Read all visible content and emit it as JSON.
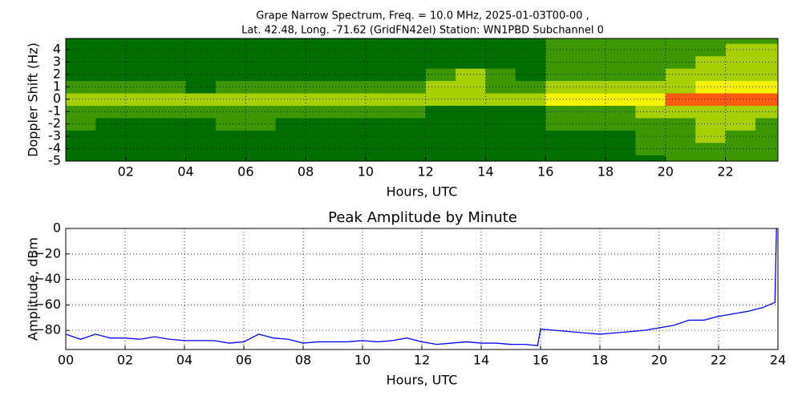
{
  "chart_data": [
    {
      "type": "heatmap",
      "title": "Grape Narrow Spectrum, Freq. = 10.0 MHz, 2025-01-03T00-00 ,",
      "subtitle": "Lat.  42.48, Long. -71.62 (GridFN42el) Station: WN1PBD Subchannel 0",
      "x_label": "Hours, UTC",
      "y_label": "Doppler Shift (Hz)",
      "xlim": [
        0,
        23.75
      ],
      "ylim": [
        -5,
        4.9
      ],
      "xticks": [
        {
          "value": 2,
          "label": "02"
        },
        {
          "value": 4,
          "label": "04"
        },
        {
          "value": 6,
          "label": "06"
        },
        {
          "value": 8,
          "label": "08"
        },
        {
          "value": 10,
          "label": "10"
        },
        {
          "value": 12,
          "label": "12"
        },
        {
          "value": 14,
          "label": "14"
        },
        {
          "value": 16,
          "label": "16"
        },
        {
          "value": 18,
          "label": "18"
        },
        {
          "value": 20,
          "label": "20"
        },
        {
          "value": 22,
          "label": "22"
        }
      ],
      "yticks": [
        -5,
        -4,
        -3,
        -2,
        -1,
        0,
        1,
        2,
        3,
        4
      ],
      "grid": true,
      "x_bins": [
        0,
        1,
        2,
        3,
        4,
        5,
        6,
        7,
        8,
        9,
        10,
        11,
        12,
        13,
        14,
        15,
        16,
        17,
        18,
        19,
        20,
        21,
        22,
        23,
        24
      ],
      "y_bins": [
        -5,
        -4.5,
        -3.5,
        -2.5,
        -1.5,
        -0.5,
        0.5,
        1.5,
        2.5,
        3.5,
        4.5,
        5
      ],
      "colormap": [
        "#006e00",
        "#3d9800",
        "#a6d000",
        "#f4f400",
        "#ff5a10"
      ],
      "z": [
        [
          0,
          0,
          0,
          0,
          0,
          0,
          0,
          0,
          0,
          0,
          0,
          0,
          0,
          0,
          0,
          0,
          0,
          0,
          0,
          0,
          1,
          1,
          1,
          1
        ],
        [
          0,
          0,
          0,
          0,
          0,
          0,
          0,
          0,
          0,
          0,
          0,
          0,
          0,
          0,
          0,
          0,
          0,
          0,
          0,
          1,
          1,
          1,
          1,
          1
        ],
        [
          0,
          0,
          0,
          0,
          0,
          0,
          0,
          0,
          0,
          0,
          0,
          0,
          0,
          0,
          0,
          0,
          0,
          0,
          0,
          1,
          1,
          2,
          1,
          1
        ],
        [
          1,
          0,
          0,
          0,
          0,
          1,
          1,
          0,
          0,
          0,
          0,
          0,
          0,
          0,
          0,
          0,
          1,
          1,
          1,
          1,
          1,
          2,
          2,
          1
        ],
        [
          1,
          1,
          1,
          1,
          1,
          1,
          1,
          1,
          1,
          1,
          1,
          1,
          0,
          0,
          0,
          0,
          1,
          1,
          1,
          2,
          2,
          2,
          2,
          2
        ],
        [
          2,
          2,
          2,
          2,
          2,
          2,
          2,
          2,
          2,
          2,
          2,
          2,
          2,
          2,
          2,
          2,
          3,
          3,
          3,
          3,
          4,
          4,
          4,
          4
        ],
        [
          1,
          1,
          1,
          1,
          0,
          1,
          1,
          1,
          1,
          1,
          1,
          1,
          2,
          2,
          1,
          1,
          2,
          2,
          2,
          2,
          2,
          3,
          3,
          3
        ],
        [
          0,
          0,
          0,
          0,
          0,
          0,
          0,
          0,
          0,
          0,
          0,
          0,
          1,
          2,
          1,
          0,
          1,
          1,
          1,
          1,
          2,
          2,
          2,
          2
        ],
        [
          0,
          0,
          0,
          0,
          0,
          0,
          0,
          0,
          0,
          0,
          0,
          0,
          0,
          0,
          0,
          0,
          1,
          1,
          1,
          1,
          1,
          2,
          2,
          2
        ],
        [
          0,
          0,
          0,
          0,
          0,
          0,
          0,
          0,
          0,
          0,
          0,
          0,
          0,
          0,
          0,
          0,
          1,
          1,
          1,
          1,
          1,
          1,
          2,
          2
        ],
        [
          0,
          0,
          0,
          0,
          0,
          0,
          0,
          0,
          0,
          0,
          0,
          0,
          0,
          0,
          0,
          0,
          1,
          1,
          1,
          1,
          1,
          1,
          1,
          1
        ]
      ]
    },
    {
      "type": "line",
      "title": "Peak Amplitude by Minute",
      "x_label": "Hours, UTC",
      "y_label": "Amplitude, dBm",
      "xlim": [
        0,
        24
      ],
      "ylim": [
        -95,
        0
      ],
      "xticks": [
        {
          "value": 0,
          "label": "00"
        },
        {
          "value": 2,
          "label": "02"
        },
        {
          "value": 4,
          "label": "04"
        },
        {
          "value": 6,
          "label": "06"
        },
        {
          "value": 8,
          "label": "08"
        },
        {
          "value": 10,
          "label": "10"
        },
        {
          "value": 12,
          "label": "12"
        },
        {
          "value": 14,
          "label": "14"
        },
        {
          "value": 16,
          "label": "16"
        },
        {
          "value": 18,
          "label": "18"
        },
        {
          "value": 20,
          "label": "20"
        },
        {
          "value": 22,
          "label": "22"
        },
        {
          "value": 24,
          "label": "24"
        }
      ],
      "yticks": [
        0,
        {
          "value": -20,
          "label": "−20"
        },
        {
          "value": -40,
          "label": "−40"
        },
        {
          "value": -60,
          "label": "−60"
        },
        {
          "value": -80,
          "label": "−80"
        }
      ],
      "grid": true,
      "color": "#0000ff",
      "x": [
        0,
        0.5,
        1,
        1.5,
        2,
        2.5,
        3,
        3.5,
        4,
        4.5,
        5,
        5.5,
        6,
        6.5,
        7,
        7.5,
        8,
        8.5,
        9,
        9.5,
        10,
        10.5,
        11,
        11.5,
        12,
        12.5,
        13,
        13.5,
        14,
        14.5,
        15,
        15.5,
        15.9,
        16,
        16.5,
        17,
        17.5,
        18,
        18.5,
        19,
        19.5,
        20,
        20.5,
        21,
        21.5,
        22,
        22.5,
        23,
        23.5,
        23.9,
        23.95
      ],
      "values": [
        -83,
        -87,
        -83,
        -86,
        -86,
        -87,
        -85,
        -87,
        -88,
        -88,
        -88,
        -90,
        -89,
        -83,
        -86,
        -87,
        -90,
        -89,
        -89,
        -89,
        -88,
        -89,
        -88,
        -86,
        -89,
        -91,
        -90,
        -89,
        -90,
        -90,
        -91,
        -91,
        -92,
        -79,
        -80,
        -81,
        -82,
        -83,
        -82,
        -81,
        -80,
        -78,
        -76,
        -72,
        -72,
        -69,
        -67,
        -65,
        -62,
        -58,
        0
      ]
    }
  ]
}
